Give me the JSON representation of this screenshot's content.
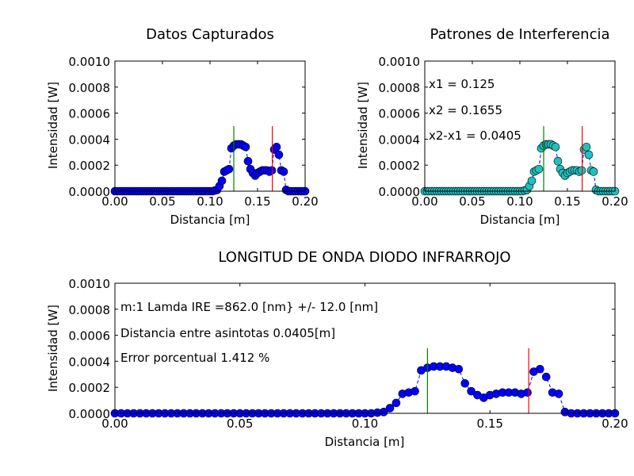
{
  "chart_data": [
    {
      "id": "p1",
      "type": "scatter",
      "title": "Datos Capturados",
      "xlabel": "Distancia [m]",
      "ylabel": "Intensidad [W]",
      "xlim": [
        0,
        0.2
      ],
      "ylim": [
        0,
        0.001
      ],
      "xticks": [
        "0.00",
        "0.05",
        "0.10",
        "0.15",
        "0.20"
      ],
      "yticks": [
        "0.0000",
        "0.0002",
        "0.0004",
        "0.0006",
        "0.0008",
        "0.0010"
      ],
      "marker_color": "#0000ff",
      "annotations": [],
      "vlines": [
        {
          "x": 0.125,
          "y": 0.0005,
          "color": "#008000"
        },
        {
          "x": 0.1655,
          "y": 0.0005,
          "color": "#ff0000"
        }
      ]
    },
    {
      "id": "p2",
      "type": "scatter",
      "title": "Patrones de Interferencia",
      "xlabel": "Distancia [m]",
      "ylabel": "Intensidad [W]",
      "xlim": [
        0,
        0.2
      ],
      "ylim": [
        0,
        0.001
      ],
      "xticks": [
        "0.00",
        "0.05",
        "0.10",
        "0.15",
        "0.20"
      ],
      "yticks": [
        "0.0000",
        "0.0002",
        "0.0004",
        "0.0006",
        "0.0008",
        "0.0010"
      ],
      "marker_color": "#20c0c0",
      "annotations": [
        "x1 = 0.125",
        "x2 = 0.1655",
        "x2-x1 = 0.0405"
      ],
      "vlines": [
        {
          "x": 0.125,
          "y": 0.0005,
          "color": "#008000"
        },
        {
          "x": 0.1655,
          "y": 0.0005,
          "color": "#ff0000"
        }
      ]
    },
    {
      "id": "p3",
      "type": "scatter",
      "title": "LONGITUD DE ONDA DIODO INFRARROJO",
      "xlabel": "Distancia [m]",
      "ylabel": "Intensidad [W]",
      "xlim": [
        0,
        0.2
      ],
      "ylim": [
        0,
        0.001
      ],
      "xticks": [
        "0.00",
        "0.05",
        "0.10",
        "0.15",
        "0.20"
      ],
      "yticks": [
        "0.0000",
        "0.0002",
        "0.0004",
        "0.0006",
        "0.0008",
        "0.0010"
      ],
      "marker_color": "#0000ff",
      "annotations": [
        "m:1 Lamda IRE =862.0 [nm} +/- 12.0 [nm]",
        "Distancia entre asintotas 0.0405[m]",
        "Error porcentual  1.412 %"
      ],
      "vlines": [
        {
          "x": 0.125,
          "y": 0.0005,
          "color": "#008000"
        },
        {
          "x": 0.1655,
          "y": 0.0005,
          "color": "#ff0000"
        }
      ]
    }
  ],
  "series": {
    "x": [
      0.0,
      0.0025,
      0.005,
      0.0075,
      0.01,
      0.0125,
      0.015,
      0.0175,
      0.02,
      0.0225,
      0.025,
      0.0275,
      0.03,
      0.0325,
      0.035,
      0.0375,
      0.04,
      0.0425,
      0.045,
      0.0475,
      0.05,
      0.0525,
      0.055,
      0.0575,
      0.06,
      0.0625,
      0.065,
      0.0675,
      0.07,
      0.0725,
      0.075,
      0.0775,
      0.08,
      0.0825,
      0.085,
      0.0875,
      0.09,
      0.0925,
      0.095,
      0.0975,
      0.1,
      0.1025,
      0.105,
      0.1075,
      0.11,
      0.1125,
      0.115,
      0.1175,
      0.12,
      0.1225,
      0.125,
      0.1275,
      0.13,
      0.1325,
      0.135,
      0.1375,
      0.14,
      0.1425,
      0.145,
      0.1475,
      0.15,
      0.1525,
      0.155,
      0.1575,
      0.16,
      0.1625,
      0.165,
      0.1675,
      0.17,
      0.1725,
      0.175,
      0.1775,
      0.18,
      0.1825,
      0.185,
      0.1875,
      0.19,
      0.1925,
      0.195,
      0.1975,
      0.2
    ],
    "y": [
      0.0,
      0.0,
      0.0,
      0.0,
      0.0,
      0.0,
      0.0,
      0.0,
      0.0,
      0.0,
      0.0,
      0.0,
      0.0,
      0.0,
      0.0,
      0.0,
      0.0,
      0.0,
      0.0,
      0.0,
      0.0,
      0.0,
      0.0,
      0.0,
      0.0,
      0.0,
      0.0,
      0.0,
      0.0,
      0.0,
      0.0,
      0.0,
      0.0,
      0.0,
      0.0,
      0.0,
      0.0,
      0.0,
      0.0,
      0.0,
      0.0,
      0.0,
      5e-06,
      1e-05,
      4e-05,
      8e-05,
      0.00015,
      0.00016,
      0.00017,
      0.00033,
      0.00035,
      0.00036,
      0.00036,
      0.00036,
      0.00035,
      0.00034,
      0.00023,
      0.00017,
      0.00014,
      0.00012,
      0.00014,
      0.00015,
      0.00016,
      0.00016,
      0.00016,
      0.00015,
      0.00016,
      0.00032,
      0.00034,
      0.00028,
      0.00016,
      0.00015,
      1e-05,
      0.0,
      0.0,
      0.0,
      0.0,
      0.0,
      0.0,
      0.0,
      0.0
    ]
  }
}
